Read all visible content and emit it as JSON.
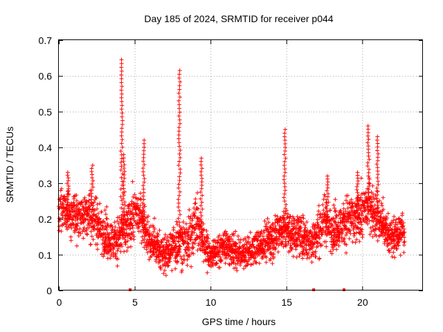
{
  "chart_data": {
    "type": "scatter",
    "title": "Day 185 of 2024, SRMTID for receiver p044",
    "xlabel": "GPS time / hours",
    "ylabel": "SRMTID / TECUs",
    "xlim": [
      0,
      24
    ],
    "ylim": [
      0,
      0.7
    ],
    "xticks": [
      0,
      5,
      10,
      15,
      20
    ],
    "yticks": [
      0,
      0.1,
      0.2,
      0.3,
      0.4,
      0.5,
      0.6,
      0.7
    ],
    "xtick_labels": [
      "0",
      "5",
      "10",
      "15",
      "20"
    ],
    "ytick_labels": [
      "0",
      "0.1",
      "0.2",
      "0.3",
      "0.4",
      "0.5",
      "0.6",
      "0.7"
    ],
    "grid": true,
    "marker": "plus",
    "color": "#ff0000",
    "zero_markers_x": [
      4.7,
      16.8,
      18.8
    ],
    "baseline_profile": {
      "x": [
        0,
        0.5,
        1.0,
        1.5,
        2.0,
        2.5,
        3.0,
        3.5,
        4.0,
        4.5,
        5.0,
        5.5,
        6.0,
        6.5,
        7.0,
        7.5,
        8.0,
        8.5,
        9.0,
        9.5,
        10.0,
        10.5,
        11.0,
        11.5,
        12.0,
        12.5,
        13.0,
        13.5,
        14.0,
        14.5,
        15.0,
        15.5,
        16.0,
        16.5,
        17.0,
        17.5,
        18.0,
        18.5,
        19.0,
        19.5,
        20.0,
        20.5,
        21.0,
        21.5,
        22.0,
        22.5,
        22.8
      ],
      "mean": [
        0.24,
        0.22,
        0.2,
        0.22,
        0.21,
        0.19,
        0.16,
        0.14,
        0.15,
        0.17,
        0.22,
        0.2,
        0.13,
        0.12,
        0.1,
        0.12,
        0.14,
        0.13,
        0.2,
        0.14,
        0.1,
        0.11,
        0.13,
        0.11,
        0.1,
        0.11,
        0.12,
        0.13,
        0.14,
        0.17,
        0.17,
        0.16,
        0.15,
        0.14,
        0.15,
        0.2,
        0.17,
        0.18,
        0.2,
        0.19,
        0.22,
        0.24,
        0.2,
        0.17,
        0.15,
        0.16,
        0.17
      ],
      "spread": [
        0.05,
        0.06,
        0.06,
        0.06,
        0.06,
        0.06,
        0.05,
        0.05,
        0.05,
        0.06,
        0.06,
        0.05,
        0.05,
        0.05,
        0.05,
        0.05,
        0.06,
        0.06,
        0.07,
        0.05,
        0.04,
        0.04,
        0.04,
        0.04,
        0.04,
        0.04,
        0.04,
        0.04,
        0.05,
        0.05,
        0.05,
        0.05,
        0.05,
        0.05,
        0.06,
        0.06,
        0.05,
        0.05,
        0.06,
        0.06,
        0.06,
        0.06,
        0.06,
        0.05,
        0.05,
        0.05,
        0.05
      ]
    },
    "peaks": [
      {
        "x": 4.15,
        "y": 0.645
      },
      {
        "x": 4.3,
        "y": 0.38
      },
      {
        "x": 5.6,
        "y": 0.42
      },
      {
        "x": 7.95,
        "y": 0.615
      },
      {
        "x": 9.4,
        "y": 0.37
      },
      {
        "x": 14.9,
        "y": 0.45
      },
      {
        "x": 20.4,
        "y": 0.46
      },
      {
        "x": 21.0,
        "y": 0.43
      },
      {
        "x": 2.2,
        "y": 0.35
      },
      {
        "x": 0.6,
        "y": 0.33
      },
      {
        "x": 17.7,
        "y": 0.32
      },
      {
        "x": 19.7,
        "y": 0.33
      }
    ]
  }
}
